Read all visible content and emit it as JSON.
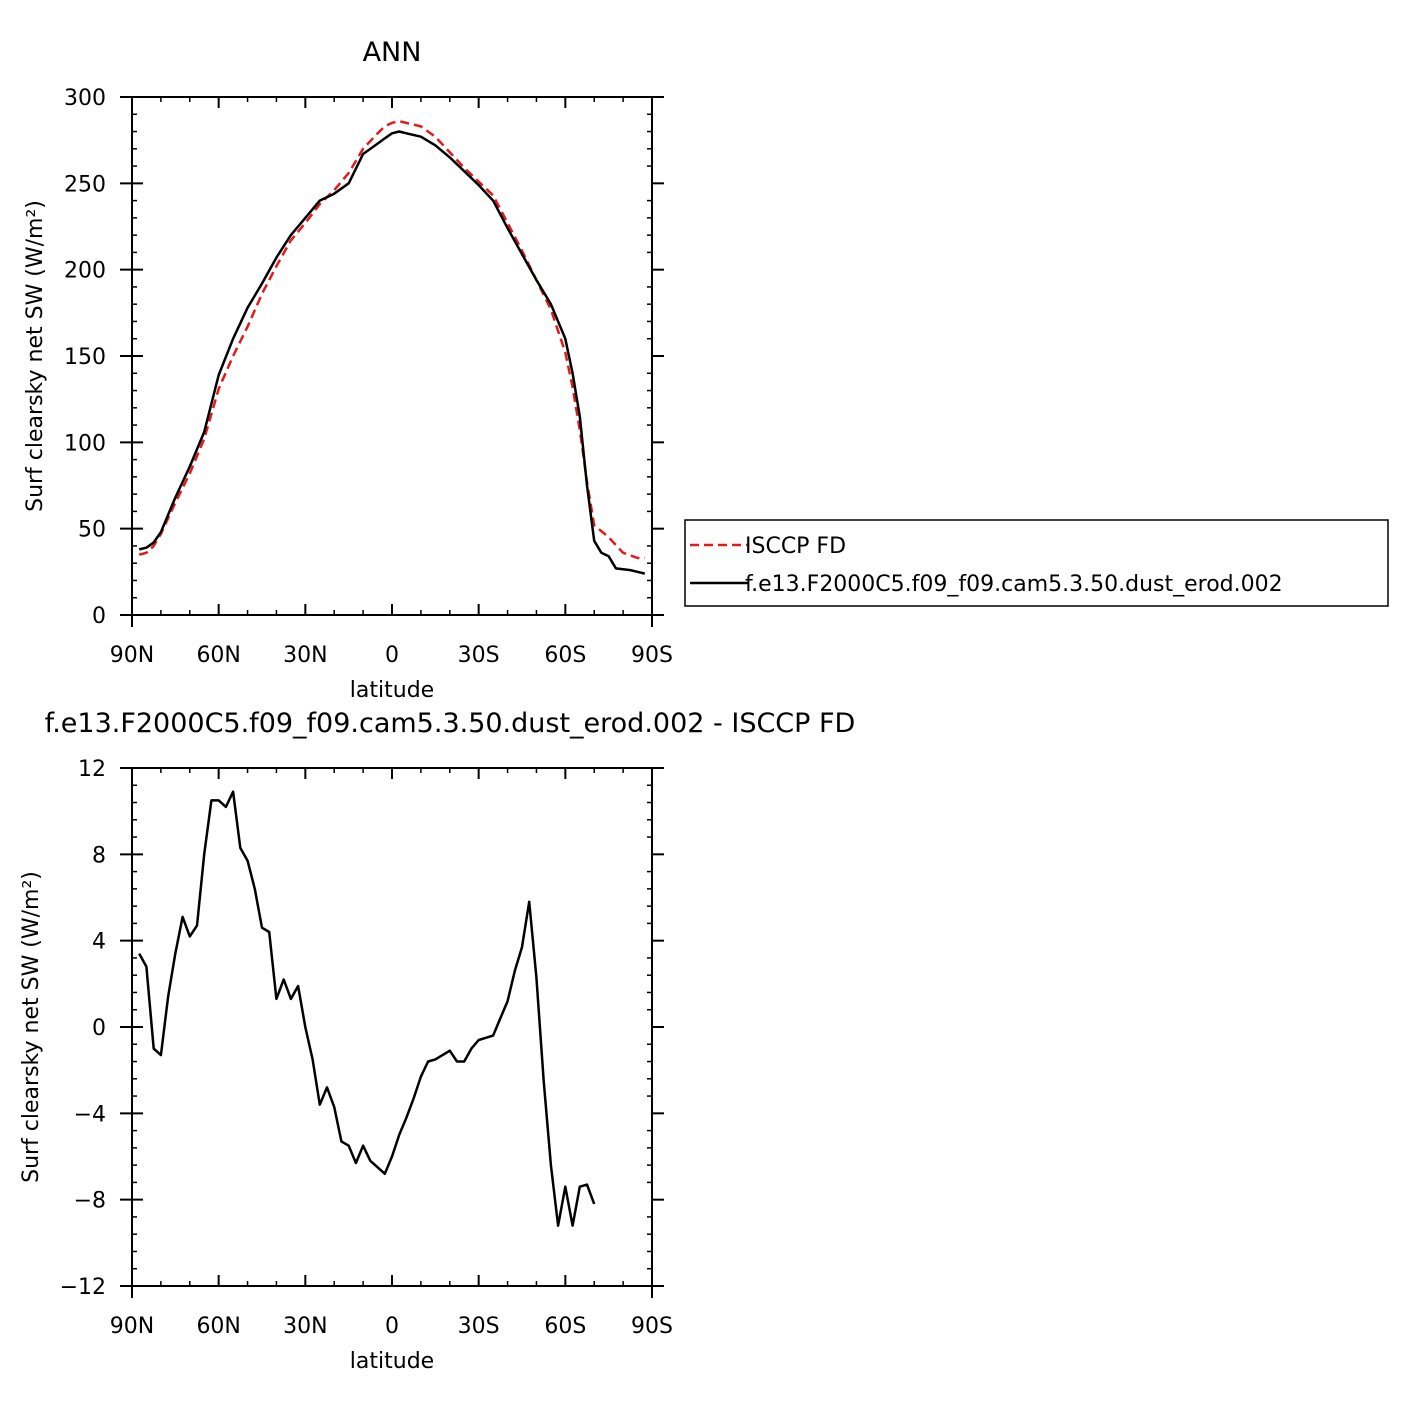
{
  "figure": {
    "title": "ANN",
    "diff_title": "f.e13.F2000C5.f09_f09.cam5.3.50.dust_erod.002 - ISCCP FD"
  },
  "chart_data": [
    {
      "type": "line",
      "title": "ANN",
      "xlabel": "latitude",
      "ylabel": "Surf clearsky net SW (W/m²)",
      "xlim": [
        90,
        -90
      ],
      "ylim": [
        0,
        300
      ],
      "xticks": [
        90,
        60,
        30,
        0,
        -30,
        -60,
        -90
      ],
      "xtick_labels": [
        "90N",
        "60N",
        "30N",
        "0",
        "30S",
        "60S",
        "90S"
      ],
      "yticks": [
        0,
        50,
        100,
        150,
        200,
        250,
        300
      ],
      "ytick_labels": [
        "0",
        "50",
        "100",
        "150",
        "200",
        "250",
        "300"
      ],
      "legend": {
        "placement": "right-outside"
      },
      "series": [
        {
          "name": "ISCCP FD",
          "color": "#e31a1c",
          "dash": "dashed",
          "points": [
            [
              87.5,
              35
            ],
            [
              85,
              36
            ],
            [
              82.5,
              40
            ],
            [
              80,
              47
            ],
            [
              75,
              65
            ],
            [
              70,
              82
            ],
            [
              65,
              102
            ],
            [
              60,
              131
            ],
            [
              55,
              150
            ],
            [
              50,
              167
            ],
            [
              45,
              186
            ],
            [
              40,
              202
            ],
            [
              35,
              217
            ],
            [
              30,
              227
            ],
            [
              25,
              238
            ],
            [
              20,
              246
            ],
            [
              15,
              256
            ],
            [
              10,
              270
            ],
            [
              5,
              279
            ],
            [
              2.5,
              283
            ],
            [
              0,
              285
            ],
            [
              -2.5,
              286
            ],
            [
              -5,
              285
            ],
            [
              -10,
              283
            ],
            [
              -15,
              277
            ],
            [
              -20,
              268
            ],
            [
              -25,
              259
            ],
            [
              -30,
              251
            ],
            [
              -35,
              243
            ],
            [
              -40,
              227
            ],
            [
              -45,
              211
            ],
            [
              -50,
              194
            ],
            [
              -55,
              177
            ],
            [
              -60,
              152
            ],
            [
              -62.5,
              132
            ],
            [
              -65,
              107
            ],
            [
              -67.5,
              77
            ],
            [
              -70,
              52
            ],
            [
              -75,
              45
            ],
            [
              -80,
              36
            ],
            [
              -85,
              33
            ],
            [
              -87.5,
              33
            ]
          ]
        },
        {
          "name": "f.e13.F2000C5.f09_f09.cam5.3.50.dust_erod.002",
          "color": "#000000",
          "dash": "solid",
          "points": [
            [
              87.5,
              38
            ],
            [
              85,
              39
            ],
            [
              82.5,
              42
            ],
            [
              80,
              48
            ],
            [
              75,
              68
            ],
            [
              70,
              86
            ],
            [
              65,
              106
            ],
            [
              60,
              139
            ],
            [
              55,
              160
            ],
            [
              50,
              178
            ],
            [
              45,
              192
            ],
            [
              40,
              207
            ],
            [
              35,
              220
            ],
            [
              30,
              230
            ],
            [
              25,
              240
            ],
            [
              20,
              244
            ],
            [
              15,
              250
            ],
            [
              10,
              267
            ],
            [
              5,
              273
            ],
            [
              2.5,
              276
            ],
            [
              0,
              279
            ],
            [
              -2.5,
              280
            ],
            [
              -5,
              279
            ],
            [
              -10,
              277
            ],
            [
              -15,
              272
            ],
            [
              -20,
              265
            ],
            [
              -25,
              257
            ],
            [
              -30,
              249
            ],
            [
              -35,
              240
            ],
            [
              -40,
              224
            ],
            [
              -45,
              209
            ],
            [
              -50,
              194
            ],
            [
              -55,
              180
            ],
            [
              -60,
              160
            ],
            [
              -62.5,
              140
            ],
            [
              -65,
              115
            ],
            [
              -67.5,
              75
            ],
            [
              -70,
              43
            ],
            [
              -72.5,
              36
            ],
            [
              -75,
              34
            ],
            [
              -77.5,
              27
            ],
            [
              -82.5,
              26
            ],
            [
              -87.5,
              24
            ]
          ]
        }
      ]
    },
    {
      "type": "line",
      "title": "f.e13.F2000C5.f09_f09.cam5.3.50.dust_erod.002 - ISCCP FD",
      "xlabel": "latitude",
      "ylabel": "Surf clearsky net SW (W/m²)",
      "xlim": [
        90,
        -90
      ],
      "ylim": [
        -12,
        12
      ],
      "xticks": [
        90,
        60,
        30,
        0,
        -30,
        -60,
        -90
      ],
      "xtick_labels": [
        "90N",
        "60N",
        "30N",
        "0",
        "30S",
        "60S",
        "90S"
      ],
      "yticks": [
        -12,
        -8,
        -4,
        0,
        4,
        8,
        12
      ],
      "ytick_labels": [
        "−12",
        "−8",
        "−4",
        "0",
        "4",
        "8",
        "12"
      ],
      "series": [
        {
          "color": "#000000",
          "dash": "solid",
          "points": [
            [
              87.5,
              3.4
            ],
            [
              85,
              2.8
            ],
            [
              82.5,
              -1.0
            ],
            [
              80,
              -1.3
            ],
            [
              77.5,
              1.4
            ],
            [
              75,
              3.4
            ],
            [
              72.5,
              5.1
            ],
            [
              70,
              4.2
            ],
            [
              67.5,
              4.7
            ],
            [
              65,
              8.0
            ],
            [
              62.5,
              10.5
            ],
            [
              60,
              10.5
            ],
            [
              57.5,
              10.2
            ],
            [
              55,
              10.9
            ],
            [
              52.5,
              8.3
            ],
            [
              50,
              7.7
            ],
            [
              47.5,
              6.4
            ],
            [
              45,
              4.6
            ],
            [
              42.5,
              4.4
            ],
            [
              40,
              1.3
            ],
            [
              37.5,
              2.2
            ],
            [
              35,
              1.3
            ],
            [
              32.5,
              1.9
            ],
            [
              30,
              0.0
            ],
            [
              27.5,
              -1.5
            ],
            [
              25,
              -3.6
            ],
            [
              22.5,
              -2.8
            ],
            [
              20,
              -3.7
            ],
            [
              17.5,
              -5.3
            ],
            [
              15,
              -5.5
            ],
            [
              12.5,
              -6.3
            ],
            [
              10,
              -5.5
            ],
            [
              7.5,
              -6.2
            ],
            [
              5,
              -6.5
            ],
            [
              2.5,
              -6.8
            ],
            [
              0,
              -6.0
            ],
            [
              -2.5,
              -5.0
            ],
            [
              -5,
              -4.2
            ],
            [
              -7.5,
              -3.3
            ],
            [
              -10,
              -2.3
            ],
            [
              -12.5,
              -1.6
            ],
            [
              -15,
              -1.5
            ],
            [
              -17.5,
              -1.3
            ],
            [
              -20,
              -1.1
            ],
            [
              -22.5,
              -1.6
            ],
            [
              -25,
              -1.6
            ],
            [
              -27.5,
              -1.0
            ],
            [
              -30,
              -0.6
            ],
            [
              -32.5,
              -0.5
            ],
            [
              -35,
              -0.4
            ],
            [
              -37.5,
              0.4
            ],
            [
              -40,
              1.2
            ],
            [
              -42.5,
              2.6
            ],
            [
              -45,
              3.7
            ],
            [
              -47.5,
              5.8
            ],
            [
              -50,
              2.3
            ],
            [
              -52.5,
              -2.5
            ],
            [
              -55,
              -6.4
            ],
            [
              -57.5,
              -9.2
            ],
            [
              -60,
              -7.4
            ],
            [
              -62.5,
              -9.2
            ],
            [
              -65,
              -7.4
            ],
            [
              -67.5,
              -7.3
            ],
            [
              -70,
              -8.2
            ]
          ]
        }
      ]
    }
  ]
}
